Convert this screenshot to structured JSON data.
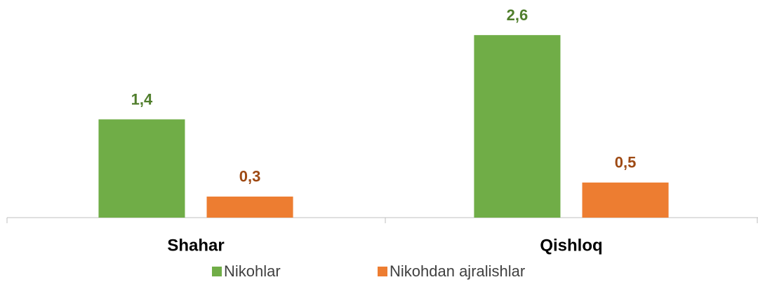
{
  "chart_data": {
    "type": "bar",
    "categories": [
      "Shahar",
      "Qishloq"
    ],
    "series": [
      {
        "name": "Nikohlar",
        "color": "#70ad47",
        "label_color": "#507e2c",
        "values": [
          1.4,
          2.6
        ],
        "value_labels": [
          "1,4",
          "2,6"
        ]
      },
      {
        "name": "Nikohdan ajralishlar",
        "color": "#ed7d31",
        "label_color": "#9e4a14",
        "values": [
          0.3,
          0.5
        ],
        "value_labels": [
          "0,3",
          "0,5"
        ]
      }
    ],
    "ylim": [
      0,
      3.1
    ],
    "legend": "bottom"
  }
}
